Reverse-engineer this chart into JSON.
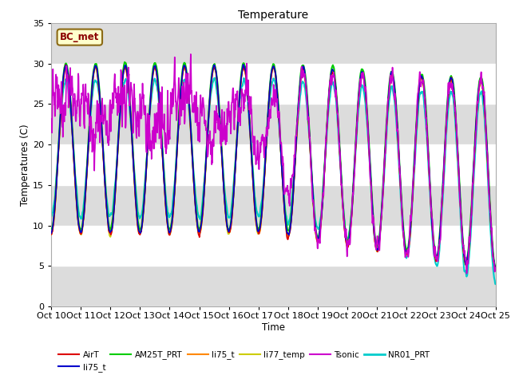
{
  "title": "Temperature",
  "xlabel": "Time",
  "ylabel": "Temperatures (C)",
  "ylim": [
    0,
    35
  ],
  "xlim": [
    0,
    360
  ],
  "annotation": "BC_met",
  "x_tick_labels": [
    "Oct 10",
    "Oct 11",
    "Oct 12",
    "Oct 13",
    "Oct 14",
    "Oct 15",
    "Oct 16",
    "Oct 17",
    "Oct 18",
    "Oct 19",
    "Oct 20",
    "Oct 21",
    "Oct 22",
    "Oct 23",
    "Oct 24",
    "Oct 25"
  ],
  "x_tick_positions": [
    0,
    24,
    48,
    72,
    96,
    120,
    144,
    168,
    192,
    216,
    240,
    264,
    288,
    312,
    336,
    360
  ],
  "series": {
    "AirT": {
      "color": "#dd0000",
      "lw": 1.2
    },
    "li75_t_b": {
      "color": "#0000cc",
      "lw": 1.2
    },
    "AM25T_PRT": {
      "color": "#00cc00",
      "lw": 1.5
    },
    "li75_t": {
      "color": "#ff8800",
      "lw": 1.2
    },
    "li77_temp": {
      "color": "#cccc00",
      "lw": 1.2
    },
    "Tsonic": {
      "color": "#cc00cc",
      "lw": 1.2
    },
    "NR01_PRT": {
      "color": "#00cccc",
      "lw": 1.5
    }
  },
  "legend_labels": [
    "AirT",
    "li75_t",
    "AM25T_PRT",
    "li75_t",
    "li77_temp",
    "Tsonic",
    "NR01_PRT"
  ],
  "legend_colors": [
    "#dd0000",
    "#0000cc",
    "#00cc00",
    "#ff8800",
    "#cccc00",
    "#cc00cc",
    "#00cccc"
  ],
  "yticks": [
    0,
    5,
    10,
    15,
    20,
    25,
    30,
    35
  ],
  "gray_band_color": "#dcdcdc",
  "annotation_facecolor": "#ffffcc",
  "annotation_edgecolor": "#8b6914",
  "annotation_textcolor": "#8b0000"
}
